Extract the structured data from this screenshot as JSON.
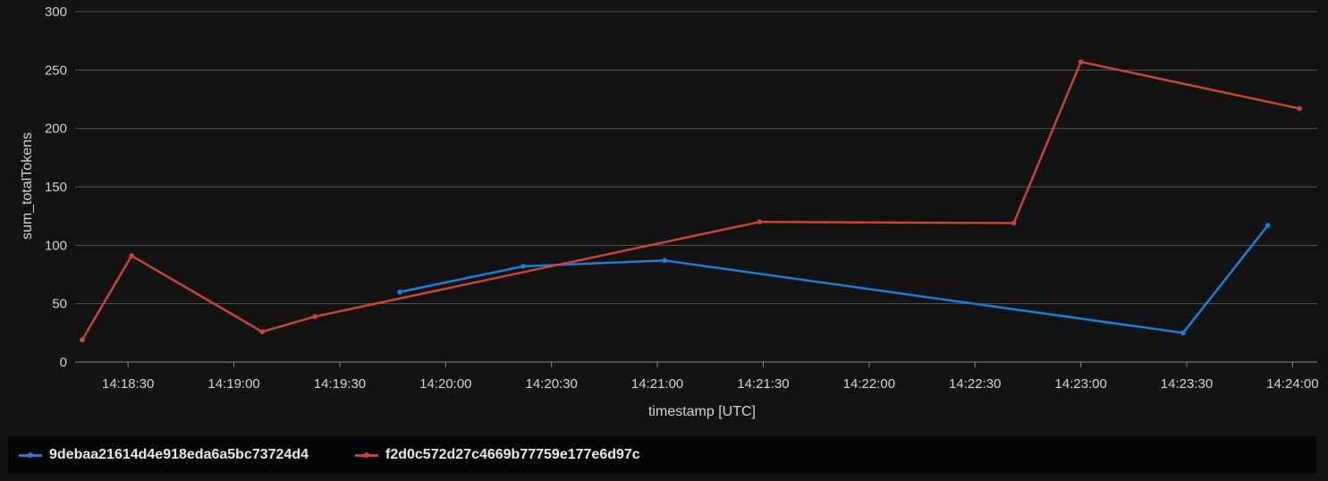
{
  "chart_data": {
    "type": "line",
    "title": "",
    "xlabel": "timestamp [UTC]",
    "ylabel": "sum_totalTokens",
    "ylim": [
      0,
      300
    ],
    "y_ticks": [
      0,
      50,
      100,
      150,
      200,
      250,
      300
    ],
    "x_range": [
      "14:18:15",
      "14:24:07"
    ],
    "x_ticks": [
      "14:18:30",
      "14:19:00",
      "14:19:30",
      "14:20:00",
      "14:20:30",
      "14:21:00",
      "14:21:30",
      "14:22:00",
      "14:22:30",
      "14:23:00",
      "14:23:30",
      "14:24:00"
    ],
    "grid": true,
    "legend_position": "bottom",
    "series": [
      {
        "name": "9debaa21614d4e918eda6a5bc73724d4",
        "color": "#1a7fd6",
        "x": [
          "14:19:47",
          "14:20:22",
          "14:21:02",
          "14:23:29",
          "14:23:53"
        ],
        "y": [
          60,
          82,
          87,
          25,
          117
        ]
      },
      {
        "name": "f2d0c572d27c4669b77759e177e6d97c",
        "color": "#c8453a",
        "x": [
          "14:18:17",
          "14:18:31",
          "14:19:08",
          "14:19:23",
          "14:21:29",
          "14:22:41",
          "14:23:00",
          "14:24:02"
        ],
        "y": [
          19,
          91,
          26,
          39,
          120,
          119,
          257,
          217
        ]
      }
    ]
  }
}
